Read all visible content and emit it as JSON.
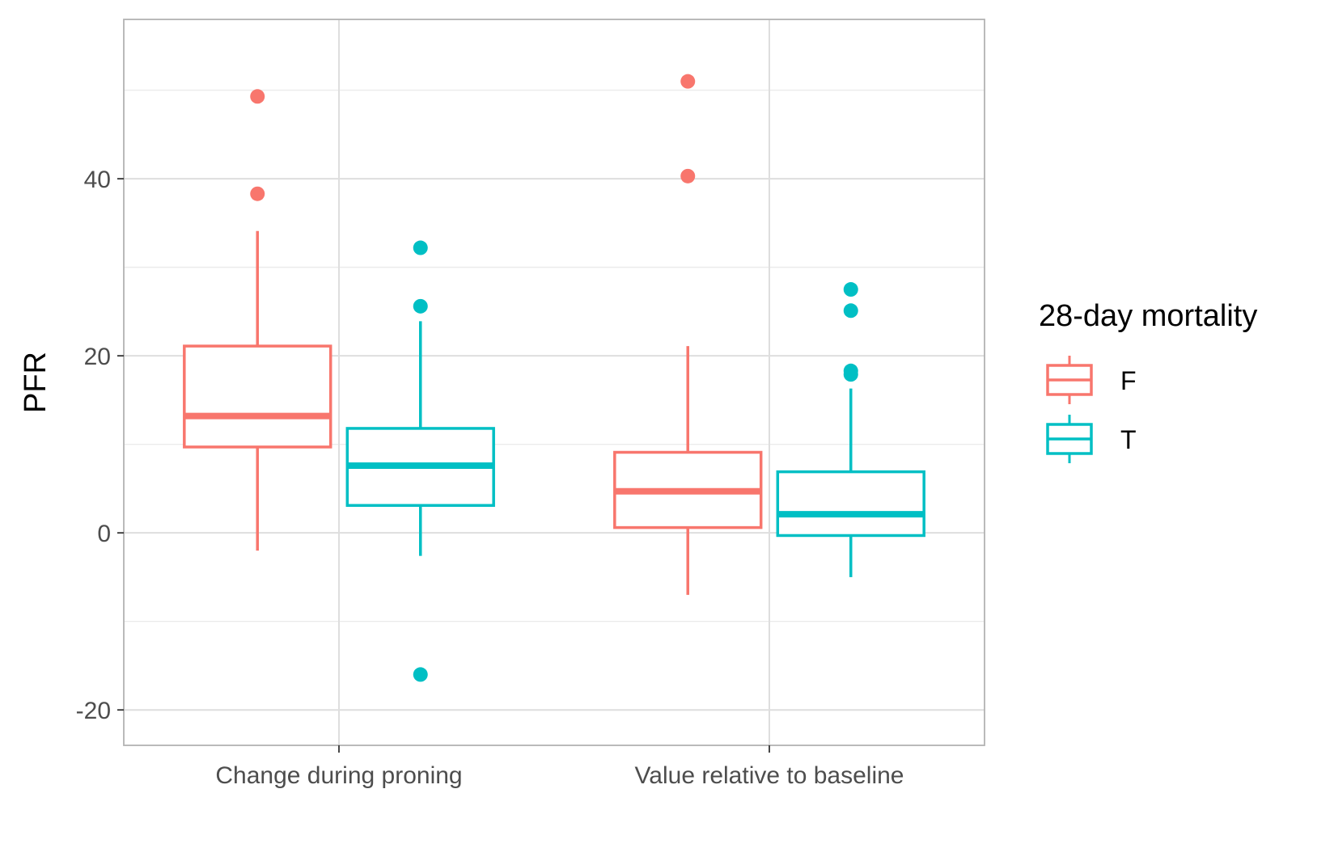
{
  "chart_data": {
    "type": "boxplot",
    "title": "",
    "xlabel": "",
    "ylabel": "PFR",
    "ylim": [
      -24,
      58
    ],
    "yticks": [
      -20,
      0,
      20,
      40
    ],
    "categories": [
      "Change during proning",
      "Value relative to baseline"
    ],
    "grid": true,
    "legend": {
      "title": "28-day mortality",
      "placement": "right",
      "entries": [
        "F",
        "T"
      ]
    },
    "series": [
      {
        "name": "F",
        "color": "#F8766D",
        "boxes": [
          {
            "category": "Change during proning",
            "whisker_low": -2,
            "q1": 9.7,
            "median": 13.2,
            "q3": 21.1,
            "whisker_high": 34.1,
            "outliers": [
              38.3,
              49.3
            ]
          },
          {
            "category": "Value relative to baseline",
            "whisker_low": -7,
            "q1": 0.6,
            "median": 4.7,
            "q3": 9.1,
            "whisker_high": 21.1,
            "outliers": [
              40.3,
              51
            ]
          }
        ]
      },
      {
        "name": "T",
        "color": "#00BFC4",
        "boxes": [
          {
            "category": "Change during proning",
            "whisker_low": -2.6,
            "q1": 3.1,
            "median": 7.6,
            "q3": 11.8,
            "whisker_high": 23.9,
            "outliers": [
              -16,
              25.6,
              32.2
            ]
          },
          {
            "category": "Value relative to baseline",
            "whisker_low": -5,
            "q1": -0.3,
            "median": 2.1,
            "q3": 6.9,
            "whisker_high": 16.3,
            "outliers": [
              17.9,
              18.3,
              25.1,
              27.5
            ]
          }
        ]
      }
    ]
  }
}
